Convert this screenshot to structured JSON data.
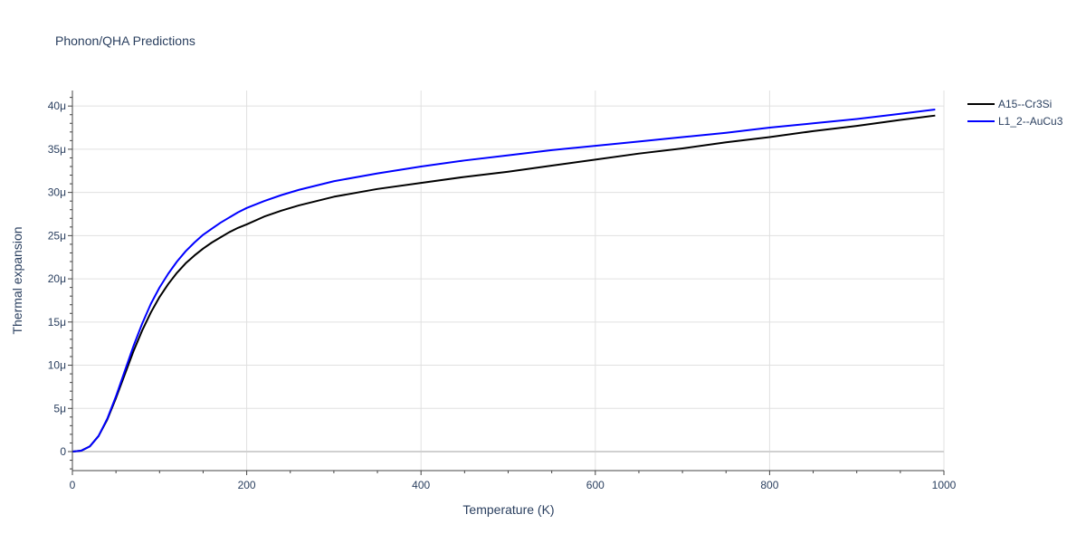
{
  "chart_data": {
    "type": "line",
    "title": "Phonon/QHA Predictions",
    "xlabel": "Temperature (K)",
    "ylabel": "Thermal expansion",
    "xlim": [
      0,
      1000
    ],
    "ylim": [
      -2.2e-06,
      4.18e-05
    ],
    "x_ticks": [
      0,
      200,
      400,
      600,
      800,
      1000
    ],
    "x_tick_labels": [
      "0",
      "200",
      "400",
      "600",
      "800",
      "1000"
    ],
    "y_ticks": [
      0,
      5e-06,
      1e-05,
      1.5e-05,
      2e-05,
      2.5e-05,
      3e-05,
      3.5e-05,
      4e-05
    ],
    "y_tick_labels": [
      "0",
      "5μ",
      "10μ",
      "15μ",
      "20μ",
      "25μ",
      "30μ",
      "35μ",
      "40μ"
    ],
    "grid": true,
    "legend_position": "top-right, outside plot",
    "series": [
      {
        "name": "A15--Cr3Si",
        "color": "#000000",
        "x": [
          0,
          10,
          20,
          30,
          40,
          50,
          60,
          70,
          80,
          90,
          100,
          110,
          120,
          130,
          140,
          150,
          160,
          170,
          180,
          190,
          200,
          220,
          240,
          260,
          280,
          300,
          350,
          400,
          450,
          500,
          550,
          600,
          650,
          700,
          750,
          800,
          850,
          900,
          950,
          990
        ],
        "y": [
          0,
          1e-07,
          6e-07,
          1.8e-06,
          3.7e-06,
          6.2e-06,
          8.9e-06,
          1.16e-05,
          1.4e-05,
          1.61e-05,
          1.79e-05,
          1.94e-05,
          2.07e-05,
          2.18e-05,
          2.27e-05,
          2.35e-05,
          2.42e-05,
          2.48e-05,
          2.54e-05,
          2.59e-05,
          2.63e-05,
          2.72e-05,
          2.79e-05,
          2.85e-05,
          2.9e-05,
          2.95e-05,
          3.04e-05,
          3.11e-05,
          3.18e-05,
          3.24e-05,
          3.31e-05,
          3.38e-05,
          3.45e-05,
          3.51e-05,
          3.58e-05,
          3.64e-05,
          3.71e-05,
          3.77e-05,
          3.84e-05,
          3.89e-05
        ]
      },
      {
        "name": "L1_2--AuCu3",
        "color": "#0000ff",
        "x": [
          0,
          10,
          20,
          30,
          40,
          50,
          60,
          70,
          80,
          90,
          100,
          110,
          120,
          130,
          140,
          150,
          160,
          170,
          180,
          190,
          200,
          220,
          240,
          260,
          280,
          300,
          350,
          400,
          450,
          500,
          550,
          600,
          650,
          700,
          750,
          800,
          850,
          900,
          950,
          990
        ],
        "y": [
          0,
          1e-07,
          6e-07,
          1.8e-06,
          3.8e-06,
          6.4e-06,
          9.3e-06,
          1.22e-05,
          1.48e-05,
          1.71e-05,
          1.9e-05,
          2.06e-05,
          2.2e-05,
          2.32e-05,
          2.42e-05,
          2.51e-05,
          2.58e-05,
          2.65e-05,
          2.71e-05,
          2.77e-05,
          2.82e-05,
          2.9e-05,
          2.97e-05,
          3.03e-05,
          3.08e-05,
          3.13e-05,
          3.22e-05,
          3.3e-05,
          3.37e-05,
          3.43e-05,
          3.49e-05,
          3.54e-05,
          3.59e-05,
          3.64e-05,
          3.69e-05,
          3.75e-05,
          3.8e-05,
          3.85e-05,
          3.91e-05,
          3.96e-05
        ]
      }
    ]
  }
}
